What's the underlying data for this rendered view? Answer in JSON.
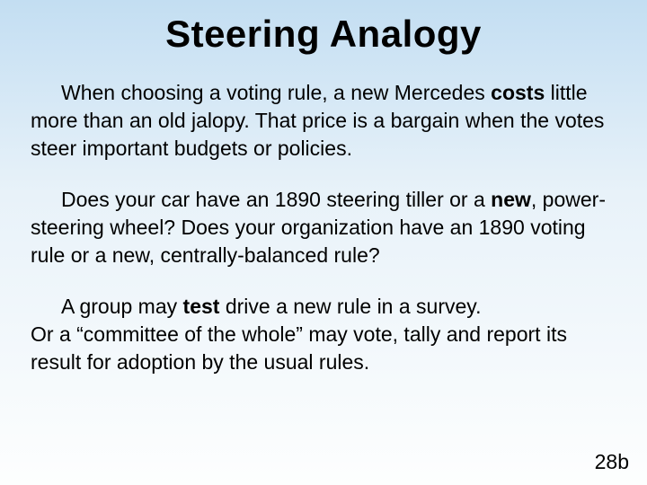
{
  "slide": {
    "title": "Steering Analogy",
    "background_gradient_top": "#c3def2",
    "background_gradient_mid": "#e8f2f9",
    "background_gradient_bottom": "#fdfefe",
    "title_fontsize": 42,
    "body_fontsize": 23,
    "text_color": "#000000",
    "font_family": "Arial",
    "paragraphs": [
      {
        "runs": [
          {
            "text": "When choosing a voting rule, a new Mercedes ",
            "bold": false
          },
          {
            "text": "costs",
            "bold": true
          },
          {
            "text": " little more than an old jalopy.  That price is a bargain when the votes steer important budgets or policies.",
            "bold": false
          }
        ]
      },
      {
        "runs": [
          {
            "text": "Does your car have an 1890 steering tiller or a ",
            "bold": false
          },
          {
            "text": "new",
            "bold": true
          },
          {
            "text": ", power-steering wheel?  Does your organization have an 1890 voting rule or a new, centrally-balanced rule?",
            "bold": false
          }
        ]
      },
      {
        "runs": [
          {
            "text": "A group may ",
            "bold": false
          },
          {
            "text": "test",
            "bold": true
          },
          {
            "text": " drive a new rule in a survey.",
            "bold": false
          }
        ],
        "trailing_line": "Or a “committee of the whole” may vote, tally and report its result for adoption by the usual rules."
      }
    ],
    "page_number": "28b"
  }
}
